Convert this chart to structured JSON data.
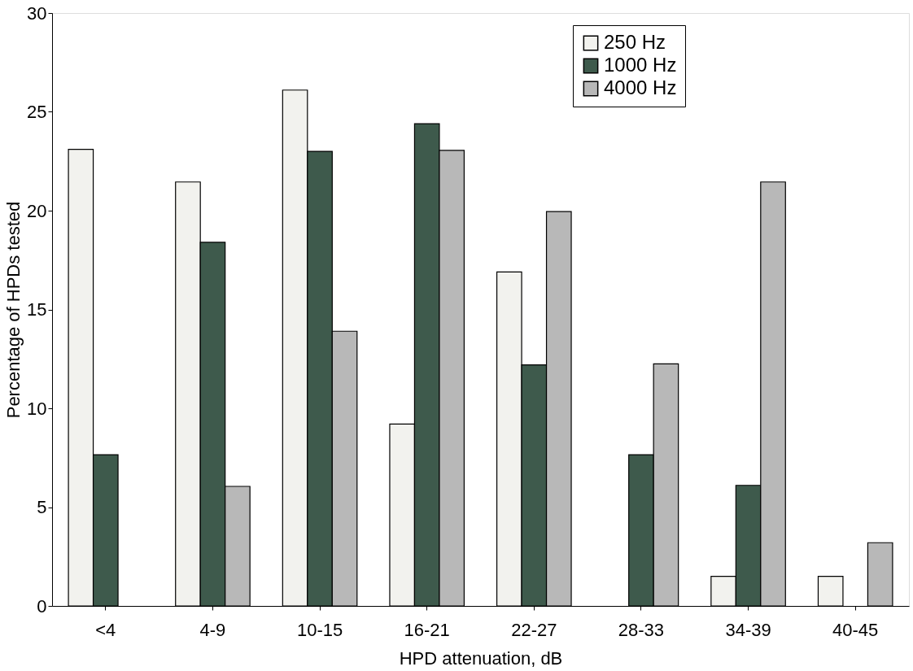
{
  "chart_data": {
    "type": "bar",
    "xlabel": "HPD attenuation, dB",
    "ylabel": "Percentage of HPDs tested",
    "categories": [
      "<4",
      "4-9",
      "10-15",
      "16-21",
      "22-27",
      "28-33",
      "34-39",
      "40-45"
    ],
    "series": [
      {
        "name": "250 Hz",
        "color": "#f2f2ee",
        "values": [
          23.1,
          21.45,
          26.1,
          9.2,
          16.9,
          null,
          1.5,
          1.5
        ]
      },
      {
        "name": "1000 Hz",
        "color": "#3e5a4c",
        "values": [
          7.65,
          18.4,
          23.0,
          24.4,
          12.2,
          7.65,
          6.1,
          null
        ]
      },
      {
        "name": "4000 Hz",
        "color": "#b8b8b8",
        "values": [
          null,
          6.05,
          13.9,
          23.05,
          19.95,
          12.25,
          21.45,
          3.2
        ]
      }
    ],
    "ylim": [
      0,
      30
    ],
    "yticks": [
      0,
      5,
      10,
      15,
      20,
      25,
      30
    ],
    "grid": false,
    "legend": "top right"
  }
}
